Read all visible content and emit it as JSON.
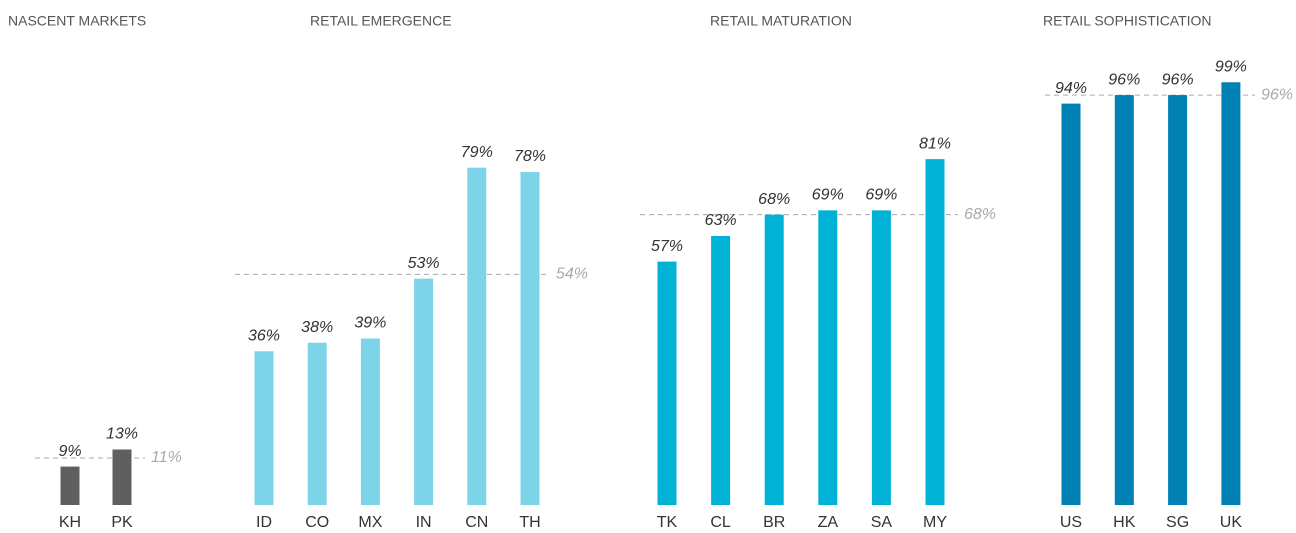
{
  "chart_data": [
    {
      "type": "bar",
      "title": "NASCENT MARKETS",
      "categories": [
        "KH",
        "PK"
      ],
      "values": [
        9,
        13
      ],
      "value_labels": [
        "9%",
        "13%"
      ],
      "color": "#5f5f5f",
      "ylim": [
        0,
        100
      ],
      "average": {
        "value": 11,
        "label": "11%"
      }
    },
    {
      "type": "bar",
      "title": "RETAIL EMERGENCE",
      "categories": [
        "ID",
        "CO",
        "MX",
        "IN",
        "CN",
        "TH"
      ],
      "values": [
        36,
        38,
        39,
        53,
        79,
        78
      ],
      "value_labels": [
        "36%",
        "38%",
        "39%",
        "53%",
        "79%",
        "78%"
      ],
      "color": "#7dd3e8",
      "ylim": [
        0,
        100
      ],
      "average": {
        "value": 54,
        "label": "54%"
      }
    },
    {
      "type": "bar",
      "title": "RETAIL MATURATION",
      "categories": [
        "TK",
        "CL",
        "BR",
        "ZA",
        "SA",
        "MY"
      ],
      "values": [
        57,
        63,
        68,
        69,
        69,
        81
      ],
      "value_labels": [
        "57%",
        "63%",
        "68%",
        "69%",
        "69%",
        "81%"
      ],
      "color": "#00b2d6",
      "ylim": [
        0,
        100
      ],
      "average": {
        "value": 68,
        "label": "68%"
      }
    },
    {
      "type": "bar",
      "title": "RETAIL SOPHISTICATION",
      "categories": [
        "US",
        "HK",
        "SG",
        "UK"
      ],
      "values": [
        94,
        96,
        96,
        99
      ],
      "value_labels": [
        "94%",
        "96%",
        "96%",
        "99%"
      ],
      "color": "#0081b4",
      "ylim": [
        0,
        100
      ],
      "average": {
        "value": 96,
        "label": "96%"
      }
    }
  ]
}
